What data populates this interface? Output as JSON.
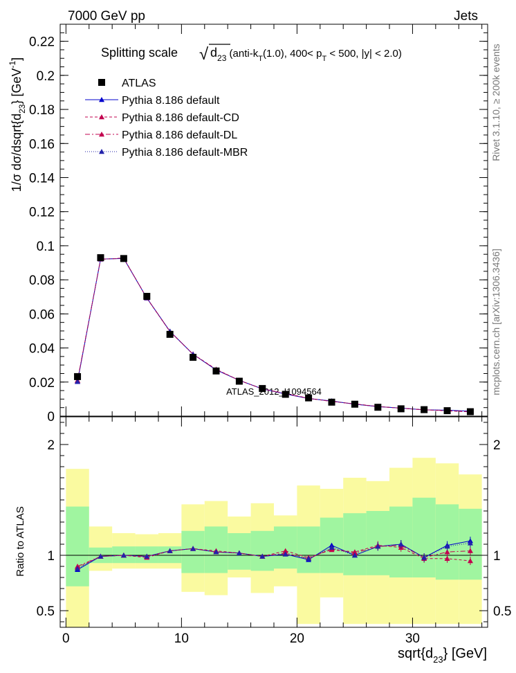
{
  "header": {
    "left": "7000 GeV pp",
    "right": "Jets"
  },
  "side": {
    "rivet": "Rivet 3.1.10, ≥ 200k events",
    "mcplots": "mcplots.cern.ch [arXiv:1306.3436]"
  },
  "watermark": "ATLAS_2012_I1094564",
  "colors": {
    "atlas": "#000000",
    "default": "#0000cc",
    "cd": "#c2004e",
    "dl": "#c2004e",
    "mbr": "#2222aa",
    "band_inner": "#a0f5a0",
    "band_outer": "#fafaa0"
  },
  "chart_data": [
    {
      "type": "line",
      "title": "Splitting scale √d23 (anti-kT(1.0), 400< pT < 500, |y| < 2.0)",
      "title_parts": {
        "main": "Splitting scale",
        "sqrt_sym": "√",
        "d": "d",
        "d_sub": "23",
        "rest1": " (anti-k",
        "kt_sub": "T",
        "rest2": "(1.0), 400< p",
        "pt_sub": "T",
        "rest3": " < 500, |y| < 2.0)"
      },
      "ylabel": "1/σ dσ/dsqrt{d23} [GeV⁻¹]",
      "ylabel_parts": {
        "a": "1/σ dσ/dsqrt{d",
        "sub": "23",
        "b": "} [GeV",
        "sup": "-1",
        "c": "]"
      },
      "xlim": [
        -0.5,
        36.5
      ],
      "ylim": [
        0,
        0.23
      ],
      "yticks": [
        0,
        0.02,
        0.04,
        0.06,
        0.08,
        0.1,
        0.12,
        0.14,
        0.16,
        0.18,
        0.2,
        0.22
      ],
      "ytick_labels": [
        "0",
        "0.02",
        "0.04",
        "0.06",
        "0.08",
        "0.1",
        "0.12",
        "0.14",
        "0.16",
        "0.18",
        "0.2",
        "0.22"
      ],
      "legend_position": "top-left",
      "bins": [
        0,
        2,
        4,
        6,
        8,
        10,
        12,
        14,
        16,
        18,
        20,
        22,
        24,
        26,
        28,
        30,
        32,
        34,
        36
      ],
      "x": [
        1,
        3,
        5,
        7,
        9,
        11,
        13,
        15,
        17,
        19,
        21,
        23,
        25,
        27,
        29,
        31,
        33,
        35
      ],
      "series": [
        {
          "name": "ATLAS",
          "marker": "square",
          "color": "#000000",
          "values": [
            0.0232,
            0.093,
            0.0925,
            0.0703,
            0.048,
            0.0345,
            0.0265,
            0.0205,
            0.0162,
            0.0128,
            0.0107,
            0.0082,
            0.007,
            0.0052,
            0.0043,
            0.0038,
            0.0032,
            0.0026
          ]
        },
        {
          "name": "Pythia 8.186 default",
          "marker": "triangle",
          "color": "#0000cc",
          "dash": "",
          "values": [
            0.0202,
            0.0922,
            0.0925,
            0.0693,
            0.0498,
            0.0363,
            0.0271,
            0.021,
            0.016,
            0.013,
            0.0103,
            0.0089,
            0.007,
            0.0056,
            0.0047,
            0.0037,
            0.0035,
            0.0029
          ]
        },
        {
          "name": "Pythia 8.186 default-CD",
          "marker": "triangle",
          "color": "#c2004e",
          "dash": "4,3",
          "values": [
            0.0207,
            0.092,
            0.0928,
            0.0692,
            0.0496,
            0.0364,
            0.0275,
            0.021,
            0.016,
            0.0133,
            0.0105,
            0.0086,
            0.0072,
            0.0057,
            0.0046,
            0.0037,
            0.0031,
            0.0025
          ]
        },
        {
          "name": "Pythia 8.186 default-DL",
          "marker": "triangle",
          "color": "#c2004e",
          "dash": "7,3,2,3",
          "values": [
            0.021,
            0.0921,
            0.0926,
            0.0694,
            0.0497,
            0.0363,
            0.0273,
            0.021,
            0.016,
            0.0131,
            0.0104,
            0.0087,
            0.0071,
            0.0056,
            0.0047,
            0.0037,
            0.0033,
            0.0027
          ]
        },
        {
          "name": "Pythia 8.186 default-MBR",
          "marker": "triangle",
          "color": "#2222aa",
          "dash": "1,2",
          "values": [
            0.0203,
            0.0921,
            0.0926,
            0.0693,
            0.0498,
            0.0363,
            0.0272,
            0.021,
            0.016,
            0.013,
            0.0104,
            0.0088,
            0.007,
            0.0056,
            0.0047,
            0.0037,
            0.0034,
            0.0028
          ]
        }
      ]
    },
    {
      "type": "line",
      "title": "Ratio to ATLAS",
      "ylabel": "Ratio to ATLAS",
      "xlabel": "sqrt{d23} [GeV]",
      "xlabel_parts": {
        "a": "sqrt{d",
        "sub": "23",
        "b": "} [GeV]"
      },
      "xlim": [
        -0.5,
        36.5
      ],
      "ylim": [
        0.35,
        2.25
      ],
      "yticks": [
        0.5,
        1,
        2
      ],
      "ytick_labels": [
        "0.5",
        "1",
        "2"
      ],
      "xticks": [
        0,
        10,
        20,
        30
      ],
      "xtick_labels": [
        "0",
        "10",
        "20",
        "30"
      ],
      "reference_line": 1,
      "bins": [
        0,
        2,
        4,
        6,
        8,
        10,
        12,
        14,
        16,
        18,
        20,
        22,
        24,
        26,
        28,
        30,
        32,
        34,
        36
      ],
      "band_inner": {
        "low": [
          0.72,
          0.93,
          0.93,
          0.93,
          0.93,
          0.84,
          0.84,
          0.87,
          0.86,
          0.88,
          0.84,
          0.84,
          0.82,
          0.82,
          0.8,
          0.8,
          0.78,
          0.78
        ],
        "high": [
          1.44,
          1.07,
          1.08,
          1.08,
          1.08,
          1.22,
          1.26,
          1.2,
          1.22,
          1.26,
          1.26,
          1.34,
          1.38,
          1.4,
          1.44,
          1.52,
          1.46,
          1.42
        ]
      },
      "band_outer": {
        "low": [
          0.35,
          0.86,
          0.88,
          0.88,
          0.88,
          0.67,
          0.64,
          0.8,
          0.66,
          0.72,
          0.38,
          0.62,
          0.38,
          0.38,
          0.38,
          0.38,
          0.38,
          0.38
        ],
        "high": [
          1.78,
          1.26,
          1.2,
          1.19,
          1.2,
          1.46,
          1.49,
          1.35,
          1.47,
          1.36,
          1.63,
          1.6,
          1.7,
          1.67,
          1.79,
          1.88,
          1.83,
          1.73
        ]
      },
      "x": [
        1,
        3,
        5,
        7,
        9,
        11,
        13,
        15,
        17,
        19,
        21,
        23,
        25,
        27,
        29,
        31,
        33,
        35
      ],
      "series": [
        {
          "name": "Pythia 8.186 default",
          "color": "#0000cc",
          "dash": "",
          "values": [
            0.87,
            0.99,
            1.0,
            0.99,
            1.04,
            1.06,
            1.03,
            1.02,
            0.99,
            1.01,
            0.96,
            1.09,
            1.0,
            1.08,
            1.1,
            0.98,
            1.09,
            1.13
          ]
        },
        {
          "name": "Pythia 8.186 default-CD",
          "color": "#c2004e",
          "dash": "4,3",
          "values": [
            0.89,
            0.99,
            1.0,
            0.98,
            1.04,
            1.06,
            1.04,
            1.02,
            0.99,
            1.04,
            0.98,
            1.05,
            1.03,
            1.09,
            1.07,
            0.97,
            0.97,
            0.95
          ]
        },
        {
          "name": "Pythia 8.186 default-DL",
          "color": "#c2004e",
          "dash": "7,3,2,3",
          "values": [
            0.9,
            0.99,
            1.0,
            0.99,
            1.04,
            1.06,
            1.03,
            1.02,
            0.99,
            1.02,
            0.97,
            1.06,
            1.02,
            1.08,
            1.09,
            0.98,
            1.03,
            1.04
          ]
        },
        {
          "name": "Pythia 8.186 default-MBR",
          "color": "#2222aa",
          "dash": "1,2",
          "values": [
            0.88,
            0.99,
            1.0,
            0.99,
            1.04,
            1.06,
            1.03,
            1.02,
            0.99,
            1.01,
            0.97,
            1.07,
            1.0,
            1.08,
            1.1,
            0.98,
            1.08,
            1.11
          ]
        }
      ]
    }
  ]
}
